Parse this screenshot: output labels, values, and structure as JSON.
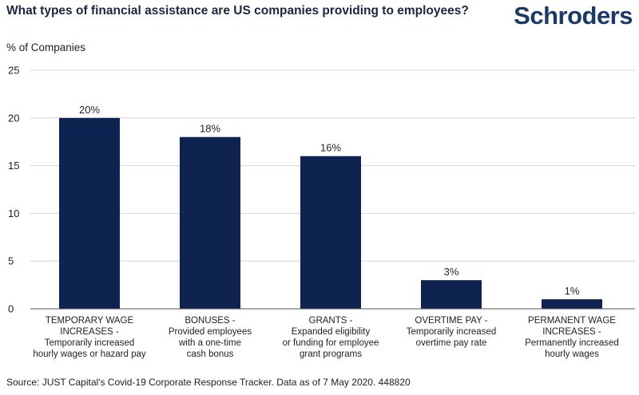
{
  "header": {
    "title": "What types of financial assistance are US companies providing to employees?",
    "brand": "Schroders"
  },
  "footer": {
    "source": "Source: JUST Capital's Covid-19 Corporate Response Tracker. Data as of 7 May 2020. 448820"
  },
  "colors": {
    "bar": "#0e2350",
    "grid": "#d5d5d5",
    "axis": "#555555"
  },
  "chart_data": {
    "type": "bar",
    "title": "What types of financial assistance are US companies providing to employees?",
    "xlabel": "",
    "ylabel": "% of Companies",
    "ylim": [
      0,
      25
    ],
    "yticks": [
      0,
      5,
      10,
      15,
      20,
      25
    ],
    "grid": true,
    "legend": "none",
    "categories": [
      [
        "TEMPORARY WAGE",
        "INCREASES -",
        "Temporarily increased",
        "hourly wages or hazard pay"
      ],
      [
        "BONUSES -",
        "Provided employees",
        "with a one-time",
        "cash bonus"
      ],
      [
        "GRANTS -",
        "Expanded eligibility",
        "or funding for employee",
        "grant programs"
      ],
      [
        "OVERTIME PAY -",
        "Temporarily increased",
        "overtime pay rate"
      ],
      [
        "PERMANENT WAGE",
        "INCREASES -",
        "Permanently increased",
        "hourly wages"
      ]
    ],
    "values": [
      20,
      18,
      16,
      3,
      1
    ],
    "data_labels": [
      "20%",
      "18%",
      "16%",
      "3%",
      "1%"
    ]
  }
}
